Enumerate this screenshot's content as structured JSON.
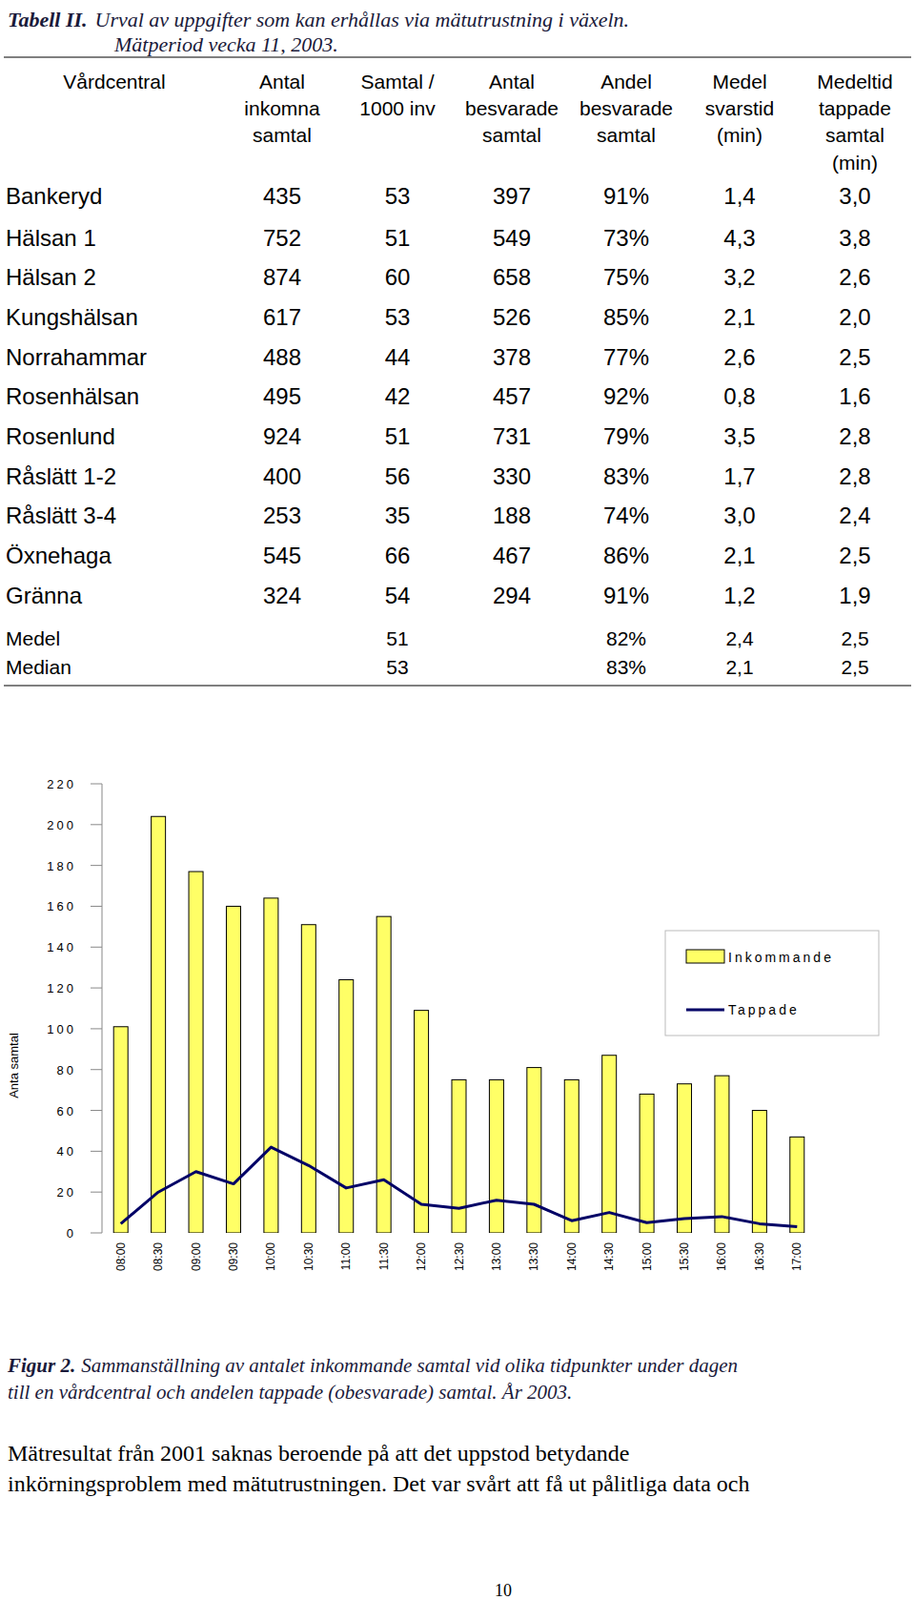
{
  "table_caption": {
    "label": "Tabell II.",
    "lines": [
      "Urval av uppgifter som kan erhållas via mätutrustning i växeln.",
      "Mätperiod vecka 11, 2003."
    ]
  },
  "table": {
    "header": [
      [
        "Vårdcentral"
      ],
      [
        "Antal",
        "inkomna",
        "samtal"
      ],
      [
        "Samtal /",
        "1000 inv"
      ],
      [
        "Antal",
        "besvarade",
        "samtal"
      ],
      [
        "Andel",
        "besvarade",
        "samtal"
      ],
      [
        "Medel",
        "svarstid",
        "(min)"
      ],
      [
        "Medeltid",
        "tappade",
        "samtal",
        "(min)"
      ]
    ],
    "rows": [
      [
        "Bankeryd",
        "435",
        "53",
        "397",
        "91%",
        "1,4",
        "3,0"
      ],
      [
        "Hälsan 1",
        "752",
        "51",
        "549",
        "73%",
        "4,3",
        "3,8"
      ],
      [
        "Hälsan 2",
        "874",
        "60",
        "658",
        "75%",
        "3,2",
        "2,6"
      ],
      [
        "Kungshälsan",
        "617",
        "53",
        "526",
        "85%",
        "2,1",
        "2,0"
      ],
      [
        "Norrahammar",
        "488",
        "44",
        "378",
        "77%",
        "2,6",
        "2,5"
      ],
      [
        "Rosenhälsan",
        "495",
        "42",
        "457",
        "92%",
        "0,8",
        "1,6"
      ],
      [
        "Rosenlund",
        "924",
        "51",
        "731",
        "79%",
        "3,5",
        "2,8"
      ],
      [
        "Råslätt 1-2",
        "400",
        "56",
        "330",
        "83%",
        "1,7",
        "2,8"
      ],
      [
        "Råslätt 3-4",
        "253",
        "35",
        "188",
        "74%",
        "3,0",
        "2,4"
      ],
      [
        "Öxnehaga",
        "545",
        "66",
        "467",
        "86%",
        "2,1",
        "2,5"
      ],
      [
        "Gränna",
        "324",
        "54",
        "294",
        "91%",
        "1,2",
        "1,9"
      ]
    ],
    "summary": [
      [
        "Medel",
        null,
        "51",
        null,
        "82%",
        "2,4",
        "2,5"
      ],
      [
        "Median",
        null,
        "53",
        null,
        "83%",
        "2,1",
        "2,5"
      ]
    ]
  },
  "chart_data": {
    "type": "bar",
    "y_label": "Anta samtal",
    "categories": [
      "08:00",
      "08:30",
      "09:00",
      "09:30",
      "10:00",
      "10:30",
      "11:00",
      "11:30",
      "12:00",
      "12:30",
      "13:00",
      "13:30",
      "14:00",
      "14:30",
      "15:00",
      "15:30",
      "16:00",
      "16:30",
      "17:00"
    ],
    "series": [
      {
        "name": "Inkommande",
        "type": "bar",
        "color": "#ffff66",
        "values": [
          101,
          204,
          177,
          160,
          164,
          151,
          124,
          155,
          109,
          75,
          75,
          81,
          75,
          87,
          68,
          73,
          77,
          60,
          47
        ]
      },
      {
        "name": "Tappade",
        "type": "line",
        "color": "#000066",
        "values": [
          4.5,
          20,
          30,
          24,
          42,
          33,
          22,
          26,
          14,
          12,
          16,
          14,
          6,
          10,
          5,
          7,
          8,
          4.5,
          3
        ]
      }
    ],
    "ylim": [
      0,
      220
    ],
    "yticks": [
      0,
      20,
      40,
      60,
      80,
      100,
      120,
      140,
      160,
      180,
      200,
      220
    ],
    "legend": "right",
    "grid": false
  },
  "figure_caption": {
    "label": "Figur 2.",
    "lines": [
      "Sammanställning av antalet inkommande samtal  vid olika tidpunkter under dagen",
      "till en vårdcentral och andelen tappade (obesvarade) samtal. År 2003."
    ]
  },
  "body": [
    "Mätresultat från 2001 saknas beroende på att det uppstod betydande",
    "inkörningsproblem med mätutrustningen. Det var svårt att få ut pålitliga data och"
  ],
  "page_number": "10"
}
